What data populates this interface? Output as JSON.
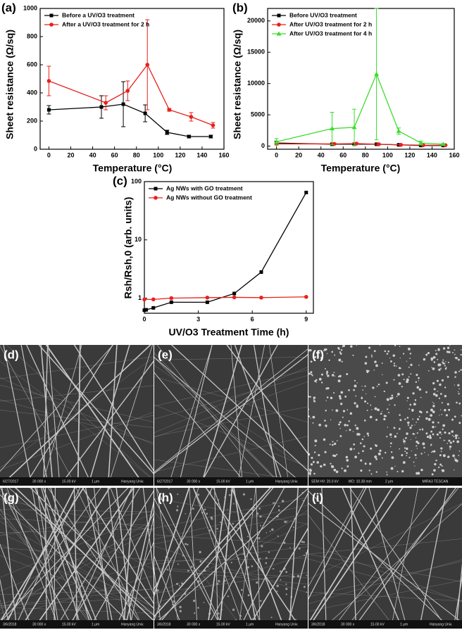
{
  "chart_data": [
    {
      "type": "line",
      "panel": "(a)",
      "x_label": "Temperature (°C)",
      "y_label": "Sheet resistance (Ω/sq)",
      "xlim": [
        -8,
        160
      ],
      "xticks": [
        0,
        20,
        40,
        60,
        80,
        100,
        120,
        140,
        160
      ],
      "ylim": [
        0,
        1000
      ],
      "yticks": [
        0,
        200,
        400,
        600,
        800,
        1000
      ],
      "legend": "upper left",
      "series": [
        {
          "name": "Before a UV/O3 treatment",
          "color": "#000000",
          "marker": "square",
          "x": [
            0,
            48,
            68,
            88,
            108,
            128,
            148
          ],
          "values": [
            280,
            300,
            320,
            255,
            120,
            90,
            90
          ],
          "errors": [
            30,
            80,
            160,
            60,
            15,
            10,
            10
          ]
        },
        {
          "name": "After a UV/O3 treatment for 2 h",
          "color": "#e8201c",
          "marker": "circle",
          "x": [
            0,
            52,
            72,
            90,
            110,
            130,
            150
          ],
          "values": [
            485,
            330,
            415,
            600,
            280,
            230,
            170
          ],
          "errors": [
            105,
            50,
            70,
            320,
            10,
            30,
            20
          ]
        }
      ]
    },
    {
      "type": "line",
      "panel": "(b)",
      "x_label": "Temperature (°C)",
      "y_label": "Sheet resistance (Ω/sq)",
      "xlim": [
        -8,
        160
      ],
      "xticks": [
        0,
        20,
        40,
        60,
        80,
        100,
        120,
        140,
        160
      ],
      "ylim": [
        -500,
        22000
      ],
      "yticks": [
        0,
        5000,
        10000,
        15000,
        20000
      ],
      "legend": "upper left",
      "series": [
        {
          "name": "Before UV/O3 treatment",
          "color": "#000000",
          "marker": "square",
          "x": [
            0,
            50,
            70,
            90,
            110,
            130,
            150
          ],
          "values": [
            500,
            300,
            300,
            300,
            200,
            100,
            100
          ],
          "errors": [
            300,
            100,
            100,
            100,
            50,
            50,
            50
          ]
        },
        {
          "name": "After  UV/O3 treatment for 2 h",
          "color": "#e8201c",
          "marker": "circle",
          "x": [
            0,
            52,
            72,
            92,
            112,
            132,
            152
          ],
          "values": [
            350,
            350,
            400,
            300,
            200,
            150,
            150
          ],
          "errors": [
            150,
            100,
            100,
            100,
            50,
            50,
            50
          ]
        },
        {
          "name": "After  UV/O3 treatment for 4 h",
          "color": "#3ddc2e",
          "marker": "triangle",
          "x": [
            0,
            50,
            70,
            90,
            110,
            130,
            150
          ],
          "values": [
            700,
            2800,
            3000,
            11500,
            2400,
            500,
            300
          ],
          "errors": [
            500,
            2600,
            2900,
            10500,
            500,
            300,
            100
          ]
        }
      ]
    },
    {
      "type": "line",
      "panel": "(c)",
      "x_label": "UV/O3 Treatment Time (h)",
      "y_label": "Rsh/Rsh,0 (arb. units)",
      "xlim": [
        0,
        9.4
      ],
      "xticks": [
        0,
        3,
        6,
        9
      ],
      "ylim": [
        0.55,
        100
      ],
      "yticks": [
        1,
        10,
        100
      ],
      "log_y": true,
      "legend": "upper left",
      "series": [
        {
          "name": "Ag NWs with GO treatment",
          "color": "#000000",
          "marker": "square",
          "x": [
            0,
            0.1,
            0.5,
            1.5,
            3.5,
            5,
            6.5,
            9
          ],
          "values": [
            0.62,
            0.63,
            0.68,
            0.85,
            0.85,
            1.2,
            2.8,
            65
          ]
        },
        {
          "name": "Ag NWs without GO treatment",
          "color": "#e8201c",
          "marker": "circle",
          "x": [
            0,
            0.5,
            1.5,
            3.5,
            5,
            6.5,
            9
          ],
          "values": [
            0.95,
            0.95,
            1.0,
            1.02,
            1.03,
            1.02,
            1.05
          ]
        }
      ]
    }
  ],
  "images": [
    {
      "panel": "(d)",
      "info": [
        "6/27/2017",
        "30 000 x",
        "15.00 kV",
        "1 μm",
        "Hanyang Univ."
      ]
    },
    {
      "panel": "(e)",
      "info": [
        "6/27/2017",
        "30 000 x",
        "15.00 kV",
        "1 μm",
        "Hanyang Univ."
      ]
    },
    {
      "panel": "(f)",
      "info": [
        "SEM HV: 20.0 kV",
        "WD: 10.38 mm",
        "2 μm",
        "MIRA3 TESCAN"
      ]
    },
    {
      "panel": "(g)",
      "info": [
        "3/6/2018",
        "30 000 x",
        "15.00 kV",
        "1 μm",
        "Hanyang Univ."
      ]
    },
    {
      "panel": "(h)",
      "info": [
        "3/6/2018",
        "30 000 x",
        "15.00 kV",
        "1 μm",
        "Hanyang Univ."
      ]
    },
    {
      "panel": "(i)",
      "info": [
        "3/6/2018",
        "30 000 x",
        "15.00 kV",
        "1 μm",
        "Hanyang Univ."
      ]
    }
  ]
}
